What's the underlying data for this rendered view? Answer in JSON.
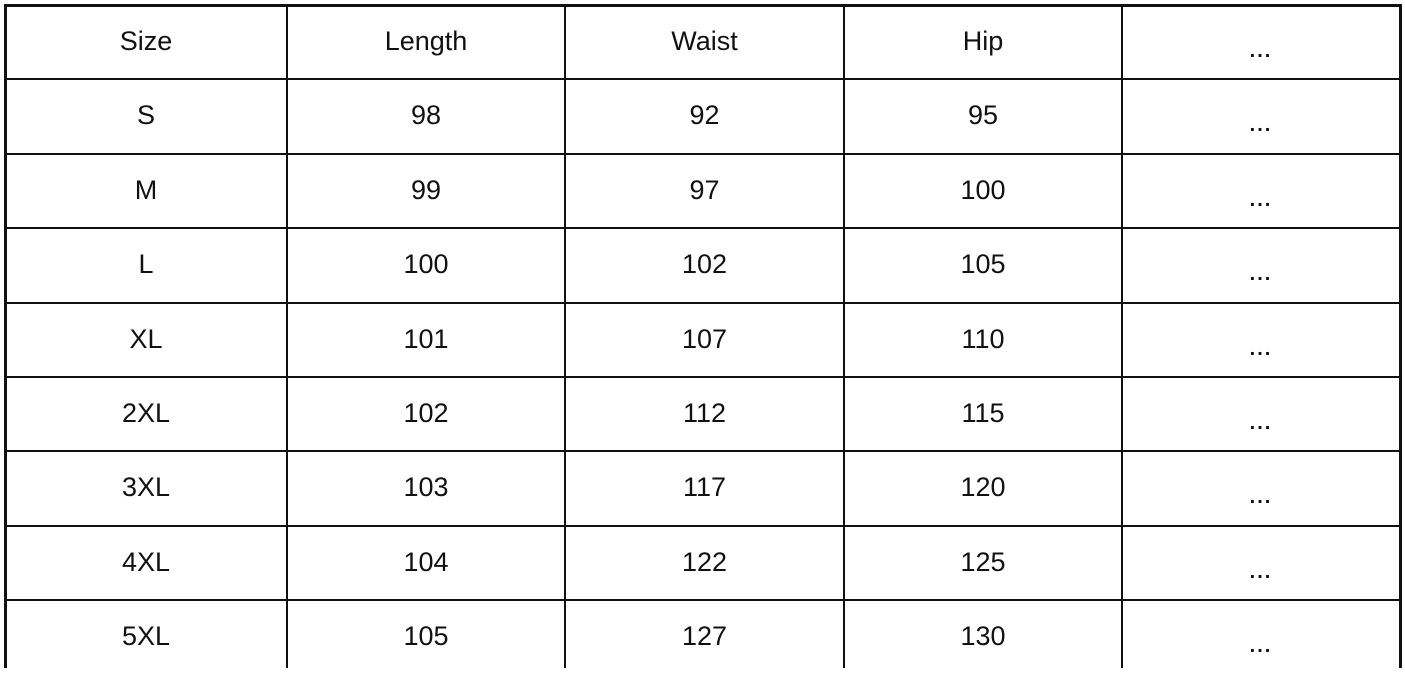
{
  "table": {
    "headers": [
      "Size",
      "Length",
      "Waist",
      "Hip",
      "..."
    ],
    "rows": [
      [
        "S",
        "98",
        "92",
        "95",
        "..."
      ],
      [
        "M",
        "99",
        "97",
        "100",
        "..."
      ],
      [
        "L",
        "100",
        "102",
        "105",
        "..."
      ],
      [
        "XL",
        "101",
        "107",
        "110",
        "..."
      ],
      [
        "2XL",
        "102",
        "112",
        "115",
        "..."
      ],
      [
        "3XL",
        "103",
        "117",
        "120",
        "..."
      ],
      [
        "4XL",
        "104",
        "122",
        "125",
        "..."
      ],
      [
        "5XL",
        "105",
        "127",
        "130",
        "..."
      ]
    ]
  }
}
